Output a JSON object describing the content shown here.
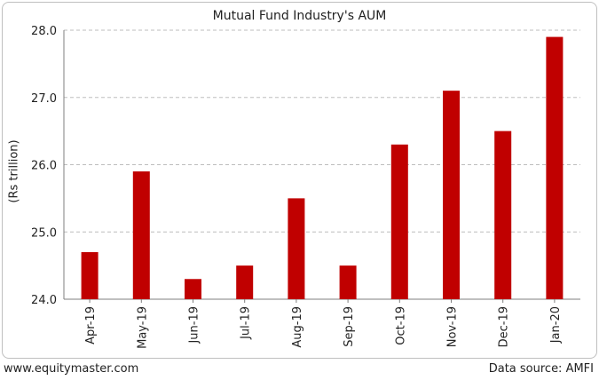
{
  "chart_data": {
    "type": "bar",
    "title": "Mutual Fund Industry's AUM",
    "xlabel": "",
    "ylabel": "(Rs trillion)",
    "categories": [
      "Apr-19",
      "May-19",
      "Jun-19",
      "Jul-19",
      "Aug-19",
      "Sep-19",
      "Oct-19",
      "Nov-19",
      "Dec-19",
      "Jan-20"
    ],
    "values": [
      24.7,
      25.9,
      24.3,
      24.5,
      25.5,
      24.5,
      26.3,
      27.1,
      26.5,
      27.9
    ],
    "ylim": [
      24.0,
      28.0
    ],
    "yticks": [
      "24.0",
      "25.0",
      "26.0",
      "27.0",
      "28.0"
    ],
    "grid": true,
    "bar_color": "#c00000"
  },
  "footer": {
    "website": "www.equitymaster.com",
    "source": "Data source: AMFI"
  }
}
